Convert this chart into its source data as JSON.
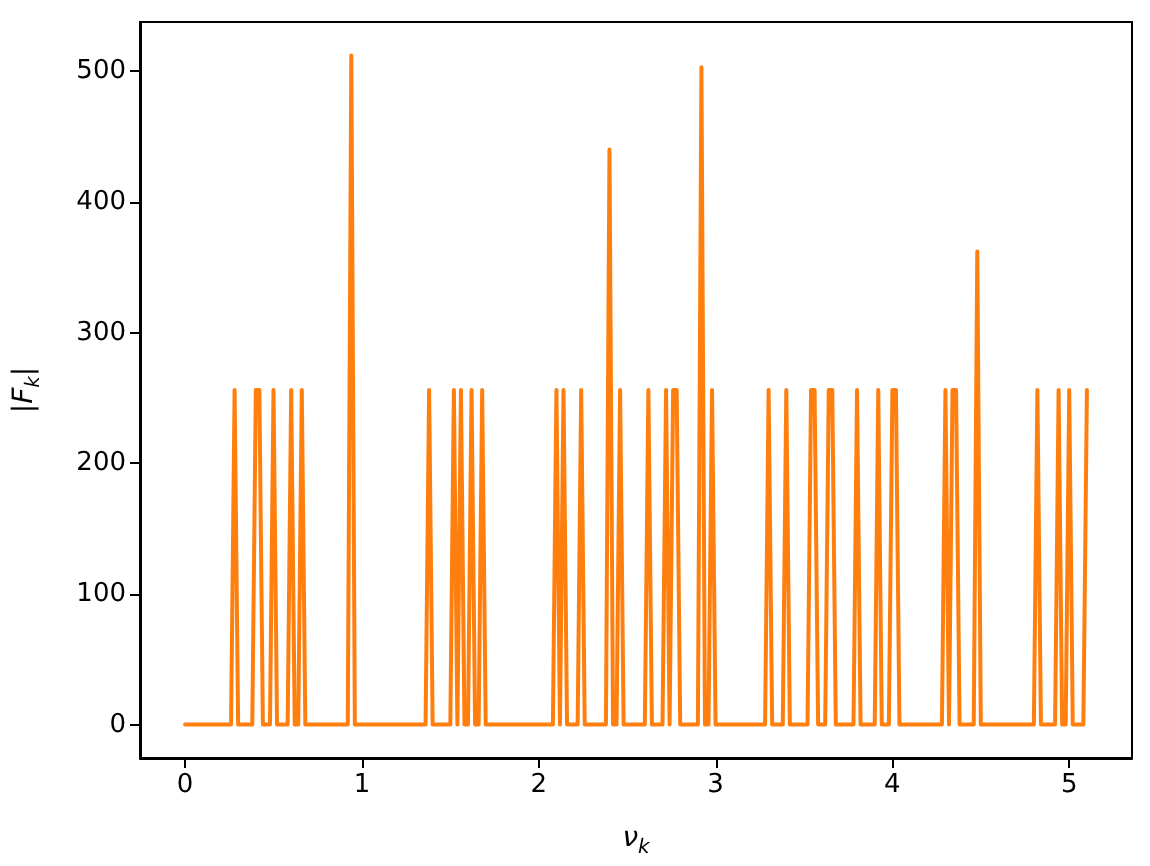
{
  "chart_data": {
    "type": "line",
    "xlabel": "ν$_{k}$",
    "ylabel": "|F$_{k}$|",
    "color": "#ff7f0e",
    "x": [
      0,
      0.26,
      0.28,
      0.3,
      0.38,
      0.4,
      0.42,
      0.44,
      0.48,
      0.5,
      0.52,
      0.58,
      0.6,
      0.62,
      0.64,
      0.66,
      0.68,
      0.92,
      0.94,
      0.96,
      1.36,
      1.38,
      1.4,
      1.5,
      1.52,
      1.54,
      1.56,
      1.58,
      1.6,
      1.62,
      1.64,
      1.66,
      1.68,
      1.7,
      2.08,
      2.1,
      2.12,
      2.14,
      2.16,
      2.22,
      2.24,
      2.26,
      2.38,
      2.4,
      2.42,
      2.44,
      2.46,
      2.48,
      2.6,
      2.62,
      2.64,
      2.7,
      2.72,
      2.74,
      2.76,
      2.78,
      2.8,
      2.9,
      2.92,
      2.94,
      2.96,
      2.98,
      3.0,
      3.28,
      3.3,
      3.32,
      3.38,
      3.4,
      3.42,
      3.52,
      3.54,
      3.56,
      3.58,
      3.62,
      3.64,
      3.66,
      3.68,
      3.78,
      3.8,
      3.82,
      3.9,
      3.92,
      3.94,
      3.98,
      4.0,
      4.02,
      4.04,
      4.28,
      4.3,
      4.32,
      4.34,
      4.36,
      4.38,
      4.46,
      4.48,
      4.5,
      4.8,
      4.82,
      4.84,
      4.92,
      4.94,
      4.96,
      4.98,
      5.0,
      5.02,
      5.08,
      5.1
    ],
    "values": [
      0,
      0,
      256,
      0,
      0,
      256,
      256,
      0,
      0,
      256,
      0,
      0,
      256,
      0,
      0,
      256,
      0,
      0,
      512,
      0,
      0,
      256,
      0,
      0,
      256,
      0,
      256,
      0,
      0,
      256,
      0,
      0,
      256,
      0,
      0,
      256,
      0,
      256,
      0,
      0,
      256,
      0,
      0,
      440,
      0,
      0,
      256,
      0,
      0,
      256,
      0,
      0,
      256,
      0,
      256,
      256,
      0,
      0,
      503,
      0,
      0,
      256,
      0,
      0,
      256,
      0,
      0,
      256,
      0,
      0,
      256,
      256,
      0,
      0,
      256,
      256,
      0,
      0,
      256,
      0,
      0,
      256,
      0,
      0,
      256,
      256,
      0,
      0,
      256,
      0,
      256,
      256,
      0,
      0,
      362,
      0,
      0,
      256,
      0,
      0,
      256,
      0,
      0,
      256,
      0,
      0,
      256
    ],
    "xlim": [
      -0.255,
      5.355
    ],
    "ylim": [
      -25.6,
      537.6
    ],
    "xticks": [
      0,
      1,
      2,
      3,
      4,
      5
    ],
    "yticks": [
      0,
      100,
      200,
      300,
      400,
      500
    ],
    "grid": false
  }
}
